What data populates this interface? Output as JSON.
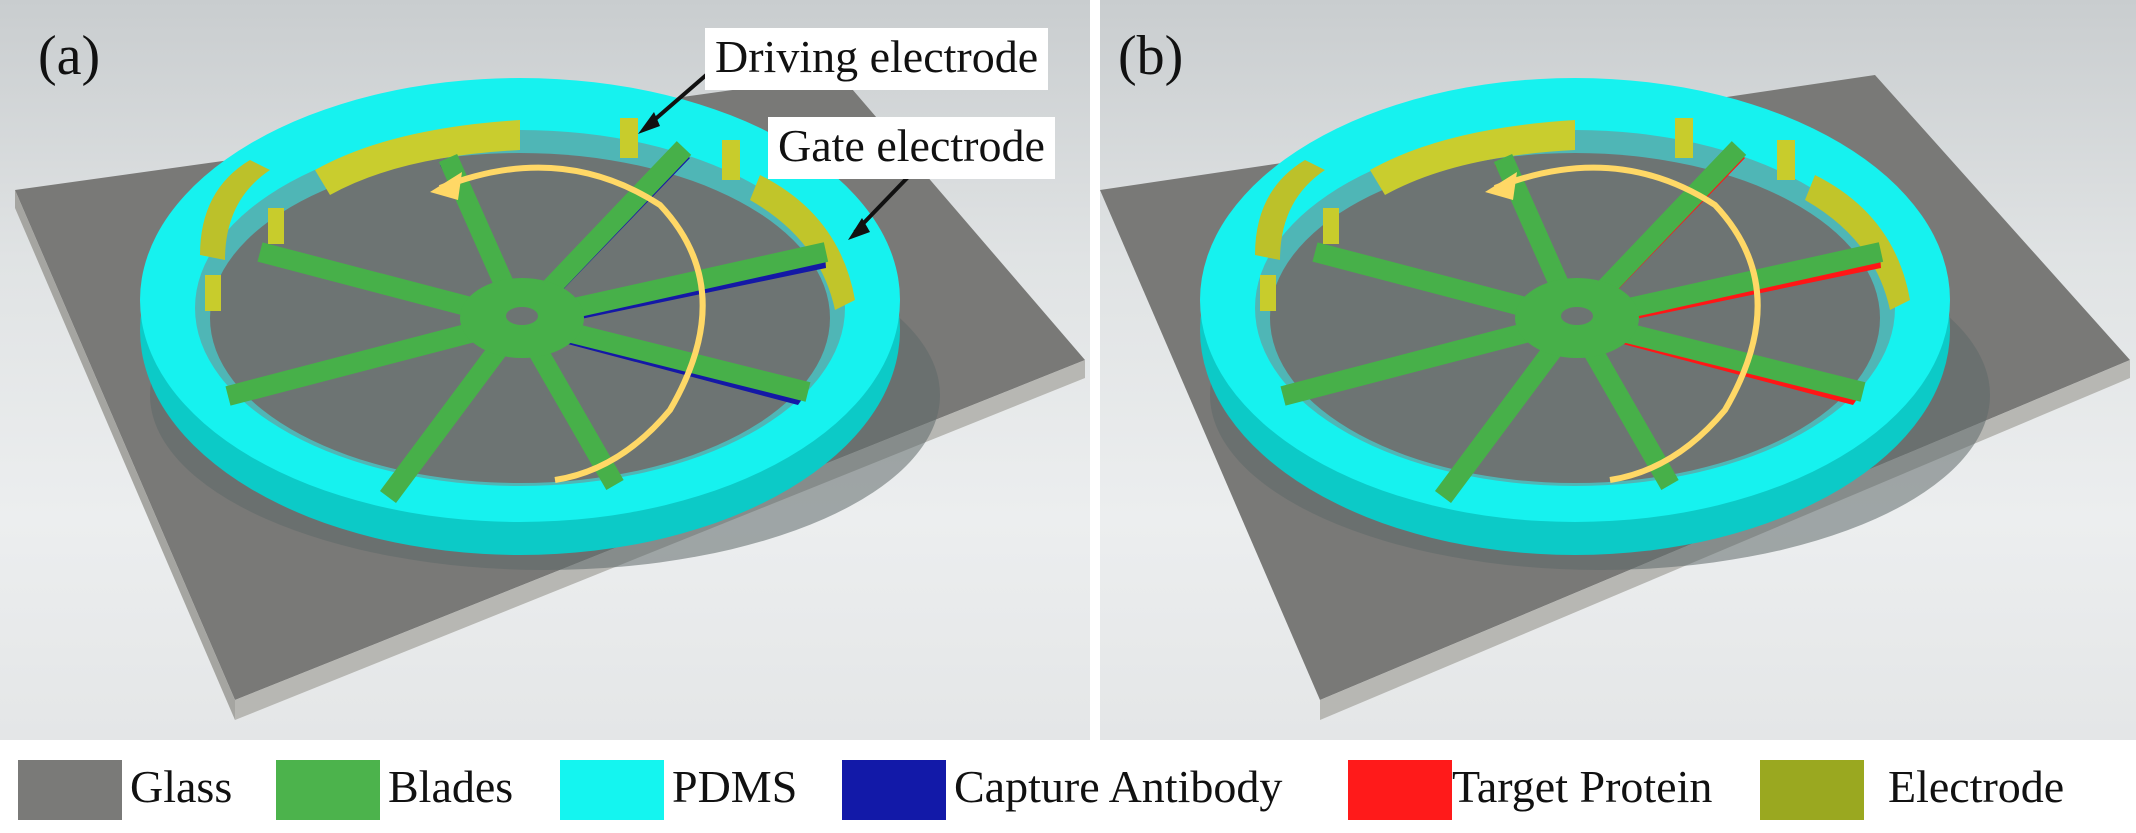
{
  "panels": [
    {
      "label": "(a)",
      "callouts": [
        "Driving electrode",
        "Gate electrode"
      ],
      "coating": "Capture Antibody"
    },
    {
      "label": "(b)",
      "coating": "Target Protein"
    }
  ],
  "legend": [
    {
      "label": "Glass",
      "color": "#7a7a78"
    },
    {
      "label": "Blades",
      "color": "#4cb34c"
    },
    {
      "label": "PDMS",
      "color": "#14f5f0"
    },
    {
      "label": "Capture Antibody",
      "color": "#1219a8"
    },
    {
      "label": "Target Protein",
      "color": "#ff1a1a"
    },
    {
      "label": "Electrode",
      "color": "#9aa820"
    }
  ],
  "colors": {
    "glass": "#7a7a78",
    "glass_edge": "#b9b9b5",
    "blade": "#47b049",
    "pdms": "#14f0ee",
    "pdms_dark": "#0cc9c6",
    "antibody": "#1418a6",
    "protein": "#ff1616",
    "electrode": "#c8cc2c",
    "arrow": "#ffd866"
  }
}
